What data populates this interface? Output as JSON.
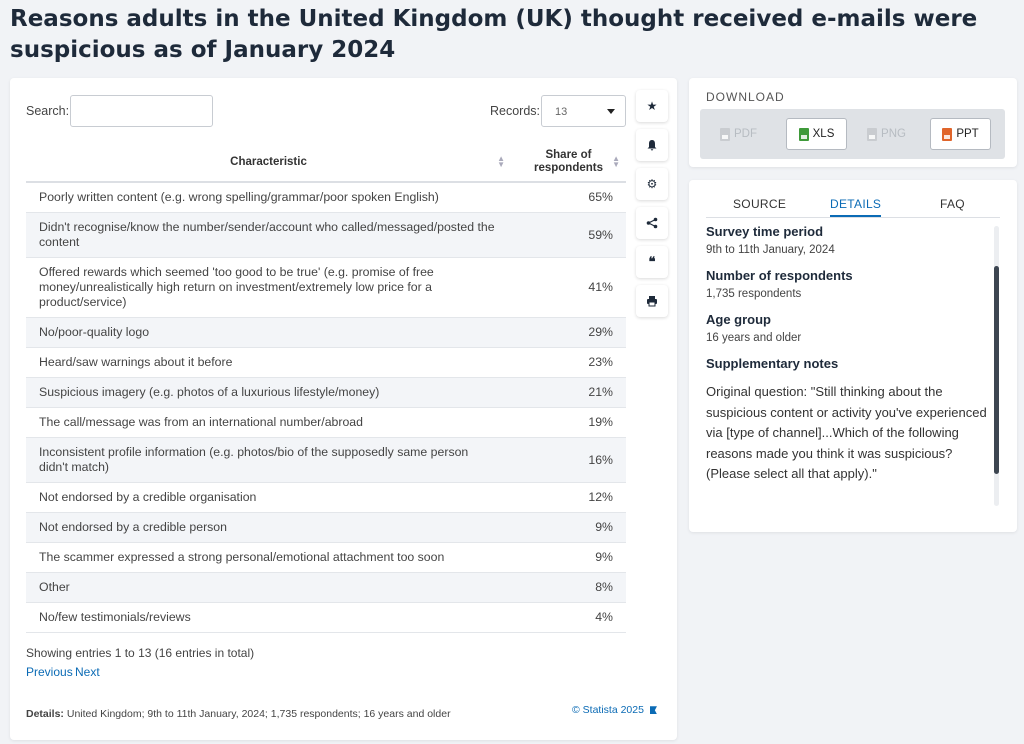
{
  "page_title": "Reasons adults in the United Kingdom (UK) thought received e-mails were suspicious as of January 2024",
  "search": {
    "label": "Search:",
    "value": ""
  },
  "records": {
    "label": "Records:",
    "value": "13"
  },
  "table": {
    "headers": {
      "characteristic": "Characteristic",
      "share_line1": "Share of",
      "share_line2": "respondents"
    },
    "rows": [
      {
        "label": "Poorly written content (e.g. wrong spelling/grammar/poor spoken English)",
        "value": "65%"
      },
      {
        "label": "Didn't recognise/know the number/sender/account who called/messaged/posted the content",
        "value": "59%"
      },
      {
        "label": "Offered rewards which seemed 'too good to be true' (e.g. promise of free money/unrealistically high return on investment/extremely low price for a product/service)",
        "value": "41%"
      },
      {
        "label": "No/poor-quality logo",
        "value": "29%"
      },
      {
        "label": "Heard/saw warnings about it before",
        "value": "23%"
      },
      {
        "label": "Suspicious imagery (e.g. photos of a luxurious lifestyle/money)",
        "value": "21%"
      },
      {
        "label": "The call/message was from an international number/abroad",
        "value": "19%"
      },
      {
        "label": "Inconsistent profile information (e.g. photos/bio of the supposedly same person didn't match)",
        "value": "16%"
      },
      {
        "label": "Not endorsed by a credible organisation",
        "value": "12%"
      },
      {
        "label": "Not endorsed by a credible person",
        "value": "9%"
      },
      {
        "label": "The scammer expressed a strong personal/emotional attachment too soon",
        "value": "9%"
      },
      {
        "label": "Other",
        "value": "8%"
      },
      {
        "label": "No/few testimonials/reviews",
        "value": "4%"
      }
    ]
  },
  "pagination": {
    "info": "Showing entries 1 to 13 (16 entries in total)",
    "previous": "Previous",
    "next": "Next"
  },
  "footer": {
    "details_label": "Details:",
    "details_text": "United Kingdom; 9th to 11th January, 2024; 1,735 respondents; 16 years and older",
    "copyright": "© Statista 2025"
  },
  "toolbar": {
    "icons": [
      "star-icon",
      "bell-icon",
      "gear-icon",
      "share-icon",
      "quote-icon",
      "print-icon"
    ]
  },
  "download": {
    "title": "DOWNLOAD",
    "buttons": [
      {
        "label": "PDF",
        "enabled": false,
        "color": "#c9ccd0"
      },
      {
        "label": "XLS",
        "enabled": true,
        "color": "#3f9a3a"
      },
      {
        "label": "PNG",
        "enabled": false,
        "color": "#c9ccd0"
      },
      {
        "label": "PPT",
        "enabled": true,
        "color": "#e0652b"
      }
    ]
  },
  "info_tabs": {
    "source": "SOURCE",
    "details": "DETAILS",
    "faq": "FAQ",
    "active": "DETAILS"
  },
  "details": {
    "survey_period_label": "Survey time period",
    "survey_period_value": "9th to 11th January, 2024",
    "respondents_label": "Number of respondents",
    "respondents_value": "1,735 respondents",
    "age_label": "Age group",
    "age_value": "16 years and older",
    "notes_label": "Supplementary notes",
    "notes_value": "Original question: \"Still thinking about the suspicious content or activity you've experienced via [type of channel]...Which of the following reasons made you think it was suspicious? (Please select all that apply).\""
  },
  "colors": {
    "accent": "#0b6bb5",
    "title": "#1e2a3a",
    "row_alt": "#f3f5f8"
  }
}
